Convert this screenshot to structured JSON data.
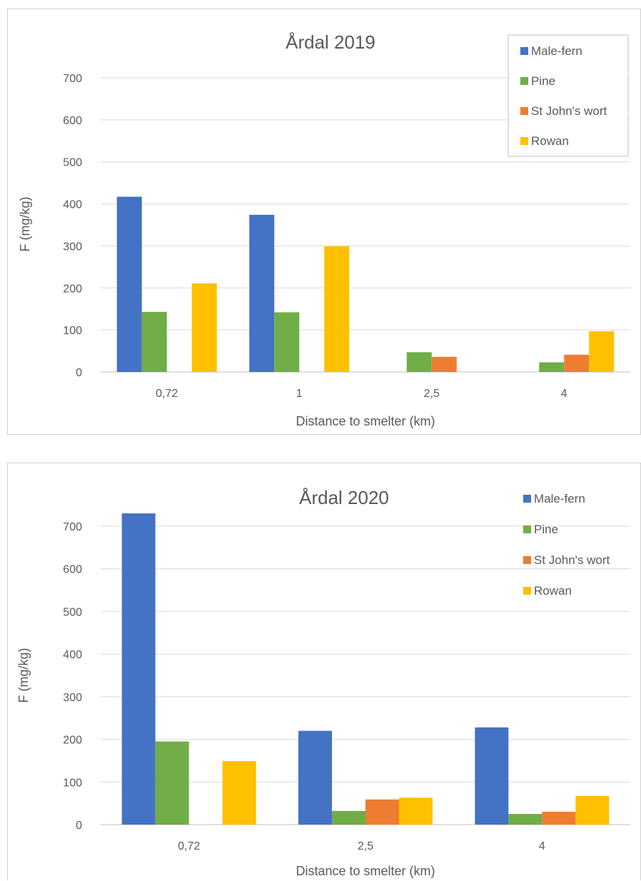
{
  "chart_data": [
    {
      "type": "bar",
      "title": "Årdal 2019",
      "xlabel": "Distance to smelter (km)",
      "ylabel": "F (mg/kg)",
      "categories": [
        "0,72",
        "1",
        "2,5",
        "4"
      ],
      "ylim": [
        0,
        700
      ],
      "yticks": [
        0,
        100,
        200,
        300,
        400,
        500,
        600,
        700
      ],
      "grid": true,
      "legend": "top-right",
      "series": [
        {
          "name": "Male-fern",
          "color": "#4472c4",
          "values": [
            417,
            374,
            null,
            null
          ]
        },
        {
          "name": "Pine",
          "color": "#70ad47",
          "values": [
            143,
            142,
            47,
            23
          ]
        },
        {
          "name": "St John's wort",
          "color": "#ed7d31",
          "values": [
            null,
            null,
            36,
            41
          ]
        },
        {
          "name": "Rowan",
          "color": "#ffc000",
          "values": [
            211,
            299,
            null,
            97
          ]
        }
      ]
    },
    {
      "type": "bar",
      "title": "Årdal 2020",
      "xlabel": "Distance to smelter (km)",
      "ylabel": "F (mg/kg)",
      "categories": [
        "0,72",
        "2,5",
        "4"
      ],
      "ylim": [
        0,
        700
      ],
      "yticks": [
        0,
        100,
        200,
        300,
        400,
        500,
        600,
        700
      ],
      "grid": true,
      "legend": "top-right",
      "series": [
        {
          "name": "Male-fern",
          "color": "#4472c4",
          "values": [
            730,
            220,
            228
          ]
        },
        {
          "name": "Pine",
          "color": "#70ad47",
          "values": [
            195,
            32,
            25
          ]
        },
        {
          "name": "St John's wort",
          "color": "#ed7d31",
          "values": [
            null,
            59,
            30
          ]
        },
        {
          "name": "Rowan",
          "color": "#ffc000",
          "values": [
            149,
            63,
            67
          ]
        }
      ]
    }
  ]
}
